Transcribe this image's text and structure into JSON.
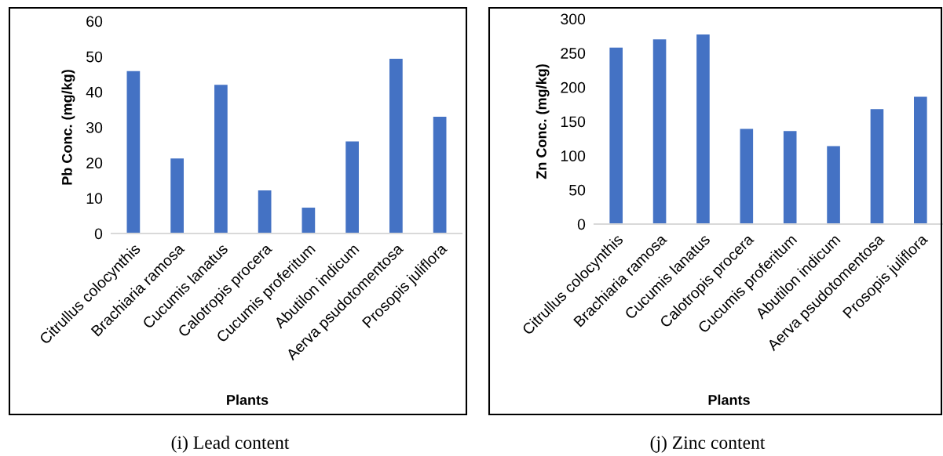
{
  "chart_data": [
    {
      "type": "bar",
      "xlabel": "Plants",
      "ylabel": "Pb Conc. (mg/kg)",
      "categories": [
        "Citrullus colocynthis",
        "Brachiaria ramosa",
        "Cucumis lanatus",
        "Calotropis procera",
        "Cucumis proferitum",
        "Abutilon indicum",
        "Aerva psudotomentosa",
        "Prosopis juliflora"
      ],
      "values": [
        45.9,
        21.2,
        42.0,
        12.2,
        7.3,
        26.0,
        49.4,
        33.0
      ],
      "color": "#4472c4",
      "ylim": [
        0,
        60
      ],
      "yticks": [
        0,
        10,
        20,
        30,
        40,
        50,
        60
      ],
      "grid": false,
      "annotations": [
        "(i) Lead content"
      ]
    },
    {
      "type": "bar",
      "xlabel": "Plants",
      "ylabel": "Zn Conc. (mg/kg)",
      "categories": [
        "Citrullus colocynthis",
        "Brachiaria ramosa",
        "Cucumis lanatus",
        "Calotropis procera",
        "Cucumis proferitum",
        "Abutilon indicum",
        "Aerva psudotomentosa",
        "Prosopis juliflora"
      ],
      "values": [
        258,
        270,
        277,
        139,
        136,
        114,
        168,
        186
      ],
      "color": "#4472c4",
      "ylim": [
        0,
        300
      ],
      "yticks": [
        0,
        50,
        100,
        150,
        200,
        250,
        300
      ],
      "grid": false,
      "annotations": [
        "(j) Zinc content"
      ]
    }
  ]
}
